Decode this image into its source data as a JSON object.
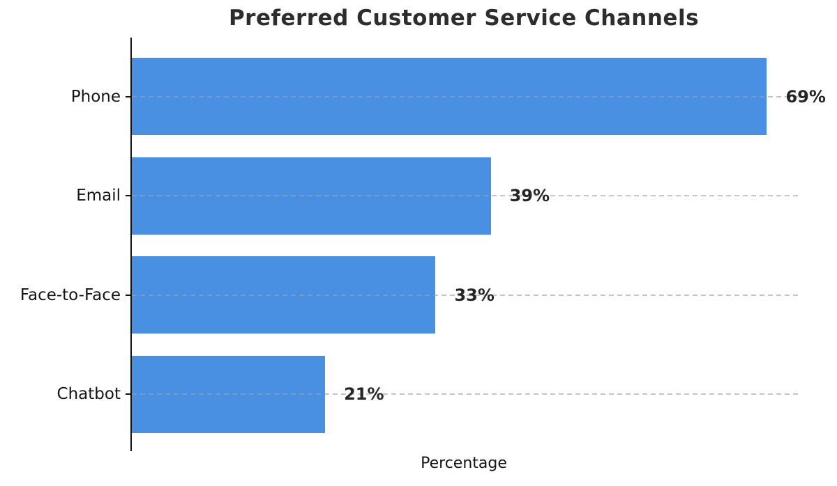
{
  "chart_data": {
    "type": "bar",
    "orientation": "horizontal",
    "title": "Preferred Customer Service Channels",
    "xlabel": "Percentage",
    "ylabel": "",
    "categories": [
      "Phone",
      "Email",
      "Face-to-Face",
      "Chatbot"
    ],
    "values": [
      69,
      39,
      33,
      21
    ],
    "value_labels": [
      "69%",
      "39%",
      "33%",
      "21%"
    ],
    "xlim": [
      0,
      72.45
    ],
    "grid": "dashed horizontal lines at each category",
    "legend_position": "none",
    "bar_color": "#4a90e2",
    "grid_color": "#a0a0a0",
    "axis_color": "#111111",
    "title_color": "#2d2d2d",
    "label_color": "#141414",
    "value_label_color": "#262626"
  }
}
